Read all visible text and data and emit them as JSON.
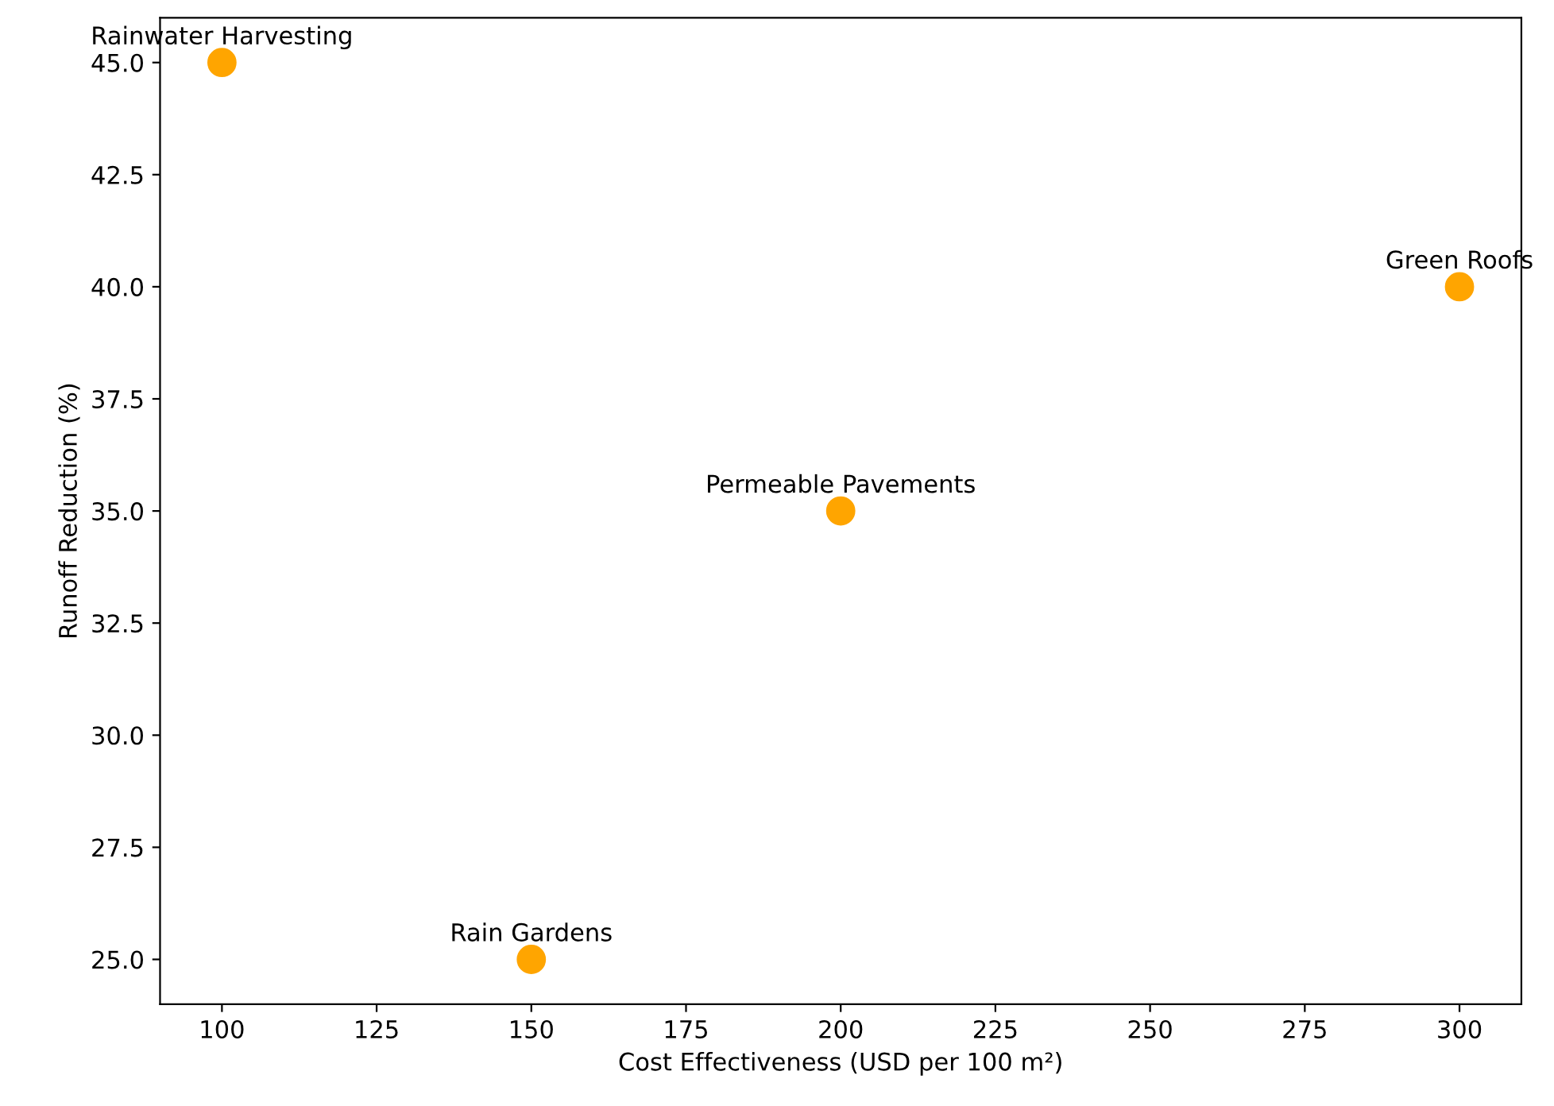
{
  "chart_data": {
    "type": "scatter",
    "xlabel": "Cost Effectiveness (USD per 100 m²)",
    "ylabel": "Runoff Reduction (%)",
    "x": [
      100,
      150,
      200,
      300
    ],
    "series": [
      {
        "color": "#ffa500",
        "values": [
          45,
          25,
          35,
          40
        ]
      }
    ],
    "marker": "circle",
    "annotations": [
      {
        "text": "Rainwater Harvesting",
        "x": 100,
        "y": 45
      },
      {
        "text": "Rain Gardens",
        "x": 150,
        "y": 25
      },
      {
        "text": "Permeable Pavements",
        "x": 200,
        "y": 35
      },
      {
        "text": "Green Roofs",
        "x": 300,
        "y": 40
      }
    ],
    "xlim": [
      90,
      310
    ],
    "xticks": [
      100,
      125,
      150,
      175,
      200,
      225,
      250,
      275,
      300
    ],
    "ylim": [
      24,
      46
    ],
    "yticks": [
      {
        "value": 25,
        "label": "25.0"
      },
      {
        "value": 27.5,
        "label": "27.5"
      },
      {
        "value": 30,
        "label": "30.0"
      },
      {
        "value": 32.5,
        "label": "32.5"
      },
      {
        "value": 35,
        "label": "35.0"
      },
      {
        "value": 37.5,
        "label": "37.5"
      },
      {
        "value": 40,
        "label": "40.0"
      },
      {
        "value": 42.5,
        "label": "42.5"
      },
      {
        "value": 45,
        "label": "45.0"
      }
    ],
    "grid": false,
    "legend": false
  }
}
